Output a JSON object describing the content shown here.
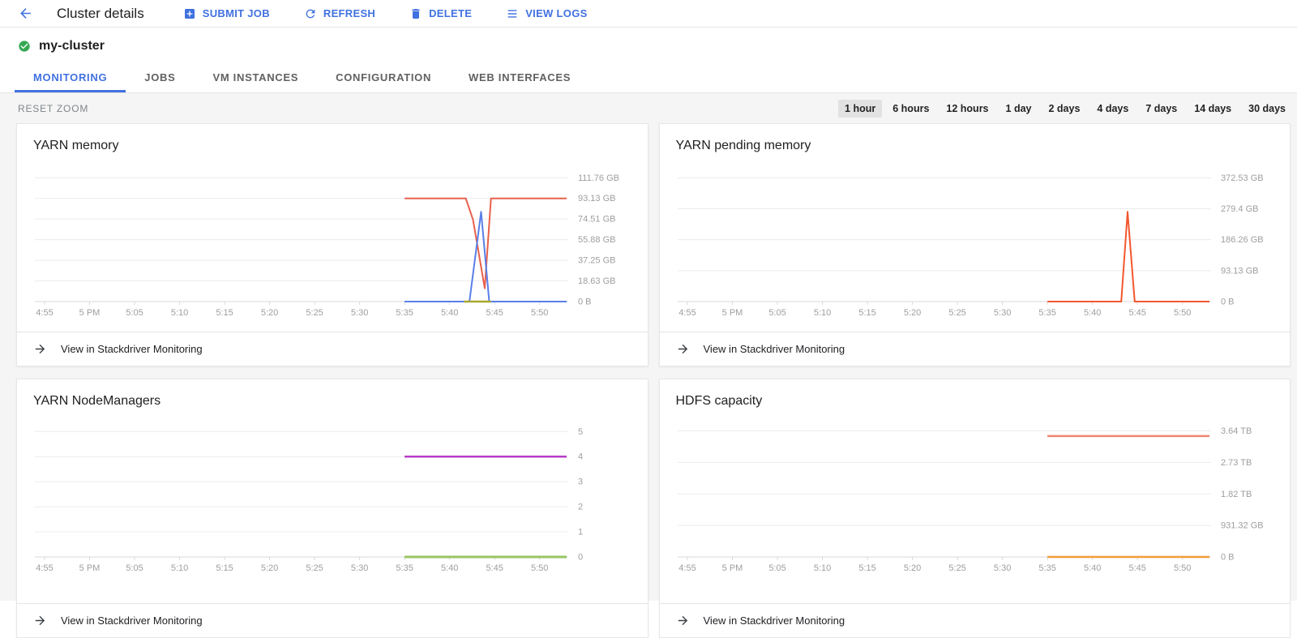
{
  "header": {
    "title": "Cluster details",
    "actions": [
      {
        "label": "SUBMIT JOB",
        "icon": "add-box-icon"
      },
      {
        "label": "REFRESH",
        "icon": "refresh-icon"
      },
      {
        "label": "DELETE",
        "icon": "delete-icon"
      },
      {
        "label": "VIEW LOGS",
        "icon": "view-logs-icon"
      }
    ]
  },
  "cluster": {
    "name": "my-cluster",
    "status": "ok"
  },
  "tabs": [
    {
      "label": "MONITORING",
      "active": true
    },
    {
      "label": "JOBS",
      "active": false
    },
    {
      "label": "VM INSTANCES",
      "active": false
    },
    {
      "label": "CONFIGURATION",
      "active": false
    },
    {
      "label": "WEB INTERFACES",
      "active": false
    }
  ],
  "controls": {
    "reset_zoom_label": "RESET ZOOM",
    "time_ranges": [
      "1 hour",
      "6 hours",
      "12 hours",
      "1 day",
      "2 days",
      "4 days",
      "7 days",
      "14 days",
      "30 days"
    ],
    "selected_range": "1 hour"
  },
  "colors": {
    "accent": "#4171E0",
    "status_green": "#34A853",
    "axis_label": "#9E9E9E",
    "grid_line": "#EBEBEB",
    "axis_line": "#D8DADD",
    "selected_range_bg": "#E2E2E2"
  },
  "chart_data": [
    {
      "type": "line",
      "title": "YARN memory",
      "link_label": "View in Stackdriver Monitoring",
      "x_domain": [
        0,
        58
      ],
      "x_unit": "minutes after 4:55 PM",
      "x_ticks": [
        [
          0,
          "4:55"
        ],
        [
          5,
          "5 PM"
        ],
        [
          10,
          "5:05"
        ],
        [
          15,
          "5:10"
        ],
        [
          20,
          "5:15"
        ],
        [
          25,
          "5:20"
        ],
        [
          30,
          "5:25"
        ],
        [
          35,
          "5:30"
        ],
        [
          40,
          "5:35"
        ],
        [
          45,
          "5:40"
        ],
        [
          50,
          "5:45"
        ],
        [
          55,
          "5:50"
        ]
      ],
      "y_ticks": [
        [
          111.76,
          "111.76 GB"
        ],
        [
          93.13,
          "93.13 GB"
        ],
        [
          74.51,
          "74.51 GB"
        ],
        [
          55.88,
          "55.88 GB"
        ],
        [
          37.25,
          "37.25 GB"
        ],
        [
          18.63,
          "18.63 GB"
        ],
        [
          0,
          "0 B"
        ]
      ],
      "y_max": 120,
      "series": [
        {
          "name": "orange-red",
          "color": "#E8604C",
          "width": 2,
          "points": [
            [
              40,
              93.13
            ],
            [
              46.8,
              93.13
            ],
            [
              47.6,
              74
            ],
            [
              48.9,
              12
            ],
            [
              49.6,
              93.13
            ],
            [
              58,
              93.13
            ]
          ]
        },
        {
          "name": "blue",
          "color": "#597FE8",
          "width": 2,
          "points": [
            [
              40,
              0
            ],
            [
              47.2,
              0
            ],
            [
              48.5,
              81
            ],
            [
              49.4,
              0
            ],
            [
              58,
              0
            ]
          ]
        },
        {
          "name": "olive",
          "color": "#ABA82E",
          "width": 2.5,
          "points": [
            [
              46.6,
              0
            ],
            [
              49.6,
              0
            ]
          ]
        }
      ]
    },
    {
      "type": "line",
      "title": "YARN pending memory",
      "link_label": "View in Stackdriver Monitoring",
      "x_domain": [
        0,
        58
      ],
      "x_unit": "minutes after 4:55 PM",
      "x_ticks": [
        [
          0,
          "4:55"
        ],
        [
          5,
          "5 PM"
        ],
        [
          10,
          "5:05"
        ],
        [
          15,
          "5:10"
        ],
        [
          20,
          "5:15"
        ],
        [
          25,
          "5:20"
        ],
        [
          30,
          "5:25"
        ],
        [
          35,
          "5:30"
        ],
        [
          40,
          "5:35"
        ],
        [
          45,
          "5:40"
        ],
        [
          50,
          "5:45"
        ],
        [
          55,
          "5:50"
        ]
      ],
      "y_ticks": [
        [
          372.53,
          "372.53 GB"
        ],
        [
          279.4,
          "279.4 GB"
        ],
        [
          186.26,
          "186.26 GB"
        ],
        [
          93.13,
          "93.13 GB"
        ],
        [
          0,
          "0 B"
        ]
      ],
      "y_max": 400,
      "series": [
        {
          "name": "orange",
          "color": "#F4572E",
          "width": 2,
          "points": [
            [
              40,
              0
            ],
            [
              48.2,
              0
            ],
            [
              48.9,
              270
            ],
            [
              49.7,
              0
            ],
            [
              58,
              0
            ]
          ]
        }
      ]
    },
    {
      "type": "line",
      "title": "YARN NodeManagers",
      "link_label": "View in Stackdriver Monitoring",
      "x_domain": [
        0,
        58
      ],
      "x_unit": "minutes after 4:55 PM",
      "x_ticks": [
        [
          0,
          "4:55"
        ],
        [
          5,
          "5 PM"
        ],
        [
          10,
          "5:05"
        ],
        [
          15,
          "5:10"
        ],
        [
          20,
          "5:15"
        ],
        [
          25,
          "5:20"
        ],
        [
          30,
          "5:25"
        ],
        [
          35,
          "5:30"
        ],
        [
          40,
          "5:35"
        ],
        [
          45,
          "5:40"
        ],
        [
          50,
          "5:45"
        ],
        [
          55,
          "5:50"
        ]
      ],
      "y_ticks": [
        [
          5,
          "5"
        ],
        [
          4,
          "4"
        ],
        [
          3,
          "3"
        ],
        [
          2,
          "2"
        ],
        [
          1,
          "1"
        ],
        [
          0,
          "0"
        ]
      ],
      "y_max": 5.3,
      "series": [
        {
          "name": "magenta",
          "color": "#B83BC9",
          "width": 2.5,
          "points": [
            [
              40,
              4
            ],
            [
              58,
              4
            ]
          ]
        },
        {
          "name": "green",
          "color": "#97C661",
          "width": 3,
          "points": [
            [
              40,
              0
            ],
            [
              58,
              0
            ]
          ]
        }
      ]
    },
    {
      "type": "line",
      "title": "HDFS capacity",
      "link_label": "View in Stackdriver Monitoring",
      "x_domain": [
        0,
        58
      ],
      "x_unit": "minutes after 4:55 PM",
      "x_ticks": [
        [
          0,
          "4:55"
        ],
        [
          5,
          "5 PM"
        ],
        [
          10,
          "5:05"
        ],
        [
          15,
          "5:10"
        ],
        [
          20,
          "5:15"
        ],
        [
          25,
          "5:20"
        ],
        [
          30,
          "5:25"
        ],
        [
          35,
          "5:30"
        ],
        [
          40,
          "5:35"
        ],
        [
          45,
          "5:40"
        ],
        [
          50,
          "5:45"
        ],
        [
          55,
          "5:50"
        ]
      ],
      "y_ticks": [
        [
          3.64,
          "3.64 TB"
        ],
        [
          2.73,
          "2.73 TB"
        ],
        [
          1.82,
          "1.82 TB"
        ],
        [
          0.91,
          "931.32 GB"
        ],
        [
          0,
          "0 B"
        ]
      ],
      "y_max": 3.84,
      "series": [
        {
          "name": "salmon",
          "color": "#ED8373",
          "width": 2.5,
          "points": [
            [
              40,
              3.49
            ],
            [
              58,
              3.49
            ]
          ]
        },
        {
          "name": "orange",
          "color": "#F29C38",
          "width": 2.5,
          "points": [
            [
              40,
              0
            ],
            [
              58,
              0
            ]
          ]
        }
      ]
    }
  ]
}
